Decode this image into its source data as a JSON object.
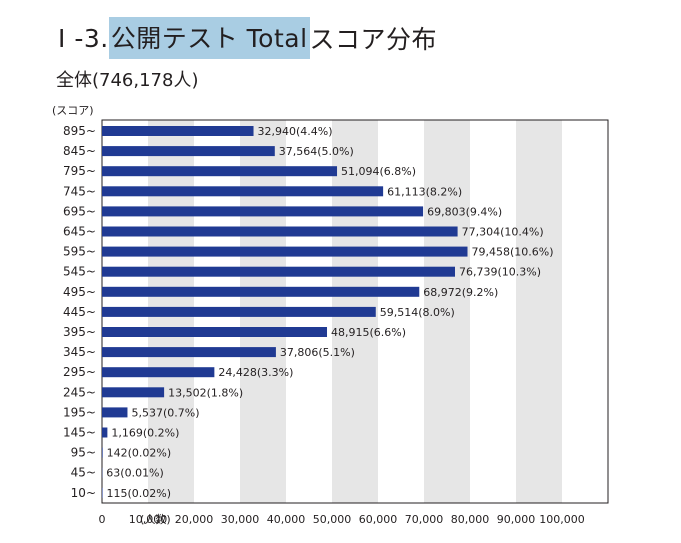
{
  "page": {
    "title_prefix": "I -3. ",
    "title_highlight": "公開テスト Total",
    "title_suffix": "スコア分布",
    "subtitle": "全体(746,178人)"
  },
  "colors": {
    "bar": "#203a93",
    "band": "#e6e6e6",
    "highlight": "#a9cde3",
    "text": "#231f20"
  },
  "chart_data": {
    "type": "bar",
    "orientation": "horizontal",
    "title": "",
    "ylabel": "(スコア)",
    "xlabel": "(人数)",
    "xlim": [
      0,
      110000
    ],
    "xticks": [
      "0",
      "10,000",
      "20,000",
      "30,000",
      "40,000",
      "50,000",
      "60,000",
      "70,000",
      "80,000",
      "90,000",
      "100,000"
    ],
    "grid": "alternating vertical bands",
    "categories": [
      "895~",
      "845~",
      "795~",
      "745~",
      "695~",
      "645~",
      "595~",
      "545~",
      "495~",
      "445~",
      "395~",
      "345~",
      "295~",
      "245~",
      "195~",
      "145~",
      "95~",
      "45~",
      "10~"
    ],
    "values": [
      32940,
      37564,
      51094,
      61113,
      69803,
      77304,
      79458,
      76739,
      68972,
      59514,
      48915,
      37806,
      24428,
      13502,
      5537,
      1169,
      142,
      63,
      115
    ],
    "data_labels": [
      "32,940(4.4%)",
      "37,564(5.0%)",
      "51,094(6.8%)",
      "61,113(8.2%)",
      "69,803(9.4%)",
      "77,304(10.4%)",
      "79,458(10.6%)",
      "76,739(10.3%)",
      "68,972(9.2%)",
      "59,514(8.0%)",
      "48,915(6.6%)",
      "37,806(5.1%)",
      "24,428(3.3%)",
      "13,502(1.8%)",
      "5,537(0.7%)",
      "1,169(0.2%)",
      "142(0.02%)",
      "63(0.01%)",
      "115(0.02%)"
    ]
  }
}
